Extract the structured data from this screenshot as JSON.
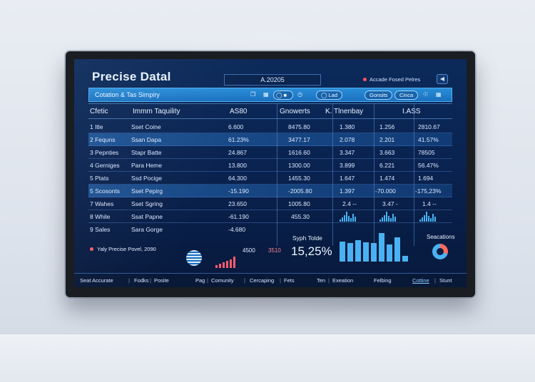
{
  "header": {
    "title": "Precise Datal",
    "field_value": "A.20205",
    "status_text": "Accade Fosed Pelres",
    "icon": "shield-icon"
  },
  "toolbar": {
    "title": "Cotation & Tas Simpiry",
    "pills": [
      "Lad",
      "Gonsits",
      "Cinca"
    ]
  },
  "table": {
    "columns": [
      "Cfetic",
      "Immm Taquility",
      "AS80",
      "Gnowerts",
      "K. Tlnenbay",
      "I.ASS"
    ],
    "rows": [
      {
        "c1": "1 Itle",
        "c2": "Sset Coine",
        "c3": "6.600",
        "c4": "8475.80",
        "c5": "1.380",
        "c6": "1.256",
        "c7": "2810.67",
        "hl": false
      },
      {
        "c1": "2 Fequns",
        "c2": "Ssan Dapa",
        "c3": "61.23%",
        "c4": "3477.17",
        "c5": "2.078",
        "c6": "2.201",
        "c7": "41.57%",
        "hl": true
      },
      {
        "c1": "3 Pepnties",
        "c2": "Stapr Batte",
        "c3": "24.867",
        "c4": "1616.60",
        "c5": "3.347",
        "c6": "3.663",
        "c7": "78505",
        "hl": false
      },
      {
        "c1": "4 Gerniges",
        "c2": "Para Heme",
        "c3": "13.800",
        "c4": "1300.00",
        "c5": "3.899",
        "c6": "6.221",
        "c7": "56.47%",
        "hl": false
      },
      {
        "c1": "5 Ptats",
        "c2": "Ssd Pocige",
        "c3": "64.300",
        "c4": "1455.30",
        "c5": "1.647",
        "c6": "1.474",
        "c7": "1.694",
        "hl": false
      },
      {
        "c1": "5 Scosonts",
        "c2": "Sset Pepirg",
        "c3": "-15.190",
        "c4": "-2005.80",
        "c5": "1.397",
        "c6": "-70.000",
        "c7": "-175,23%",
        "hl": true
      },
      {
        "c1": "7 Wahes",
        "c2": "Sset Sgring",
        "c3": "23.650",
        "c4": "1005.80",
        "c5": "2.4 --",
        "c6": "3.47 -",
        "c7": "1.4 --",
        "hl": false
      },
      {
        "c1": "8 While",
        "c2": "Ssat Papne",
        "c3": "-61.190",
        "c4": "455.30",
        "c5": "",
        "c6": "",
        "c7": "",
        "hl": false
      },
      {
        "c1": "9 Sales",
        "c2": "Sara Gorge",
        "c3": "-4.680",
        "c4": "",
        "c5": "",
        "c6": "",
        "c7": "",
        "hl": false
      }
    ]
  },
  "bottom": {
    "legend_text": "Yaly Precise Povel, 2090",
    "value_a": "4500",
    "value_b": "3510",
    "panel_title": "Syph Tolde",
    "panel_value": "15,25%",
    "right_title": "Seacations",
    "mini_bars": [
      3,
      6,
      9,
      14,
      8,
      5,
      11,
      7
    ],
    "big_bars": [
      28,
      26,
      30,
      27,
      26,
      40,
      24,
      34,
      8
    ],
    "colors": {
      "accent": "#4ab2f2",
      "red": "#ff5c6c"
    }
  },
  "footer": {
    "items": [
      "Seat Accurate",
      "Fodks",
      "Posite",
      "Pag",
      "Comunity",
      "Cercaping",
      "Fets",
      "Ten",
      "Exeation",
      "Felbing",
      "Cottine",
      "Stunt"
    ]
  }
}
